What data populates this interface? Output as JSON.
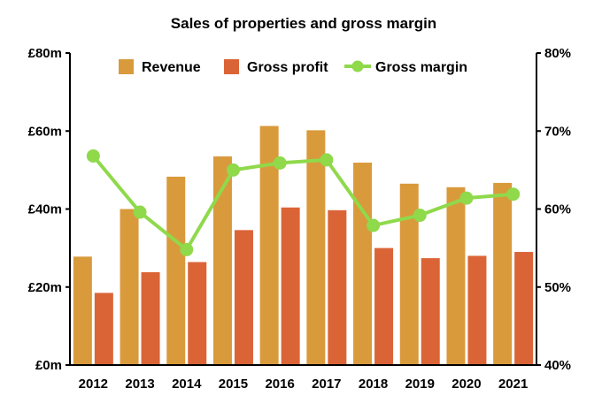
{
  "chart_data": {
    "type": "bar",
    "title": "Sales of properties and gross margin",
    "categories": [
      "2012",
      "2013",
      "2014",
      "2015",
      "2016",
      "2017",
      "2018",
      "2019",
      "2020",
      "2021"
    ],
    "series": [
      {
        "name": "Revenue",
        "kind": "bar",
        "axis": "left",
        "color": "#D99A3C",
        "values": [
          27.8,
          40.0,
          48.3,
          53.5,
          61.3,
          60.2,
          51.9,
          46.5,
          45.6,
          46.7
        ]
      },
      {
        "name": "Gross profit",
        "kind": "bar",
        "axis": "left",
        "color": "#DB6436",
        "values": [
          18.5,
          23.8,
          26.4,
          34.6,
          40.4,
          39.7,
          30.0,
          27.4,
          28.0,
          29.0
        ]
      },
      {
        "name": "Gross margin",
        "kind": "line",
        "axis": "right",
        "color": "#8FD94B",
        "values": [
          66.8,
          59.6,
          54.8,
          65.0,
          65.9,
          66.3,
          57.9,
          59.2,
          61.4,
          61.9
        ]
      }
    ],
    "y_left": {
      "min": 0,
      "max": 80,
      "ticks": [
        0,
        20,
        40,
        60,
        80
      ],
      "tick_labels": [
        "£0m",
        "£20m",
        "£40m",
        "£60m",
        "£80m"
      ]
    },
    "y_right": {
      "min": 40,
      "max": 80,
      "ticks": [
        40,
        50,
        60,
        70,
        80
      ],
      "tick_labels": [
        "40%",
        "50%",
        "60%",
        "70%",
        "80%"
      ]
    },
    "grid": false,
    "legend": {
      "position": "top-center",
      "items": [
        "Revenue",
        "Gross profit",
        "Gross margin"
      ]
    }
  }
}
